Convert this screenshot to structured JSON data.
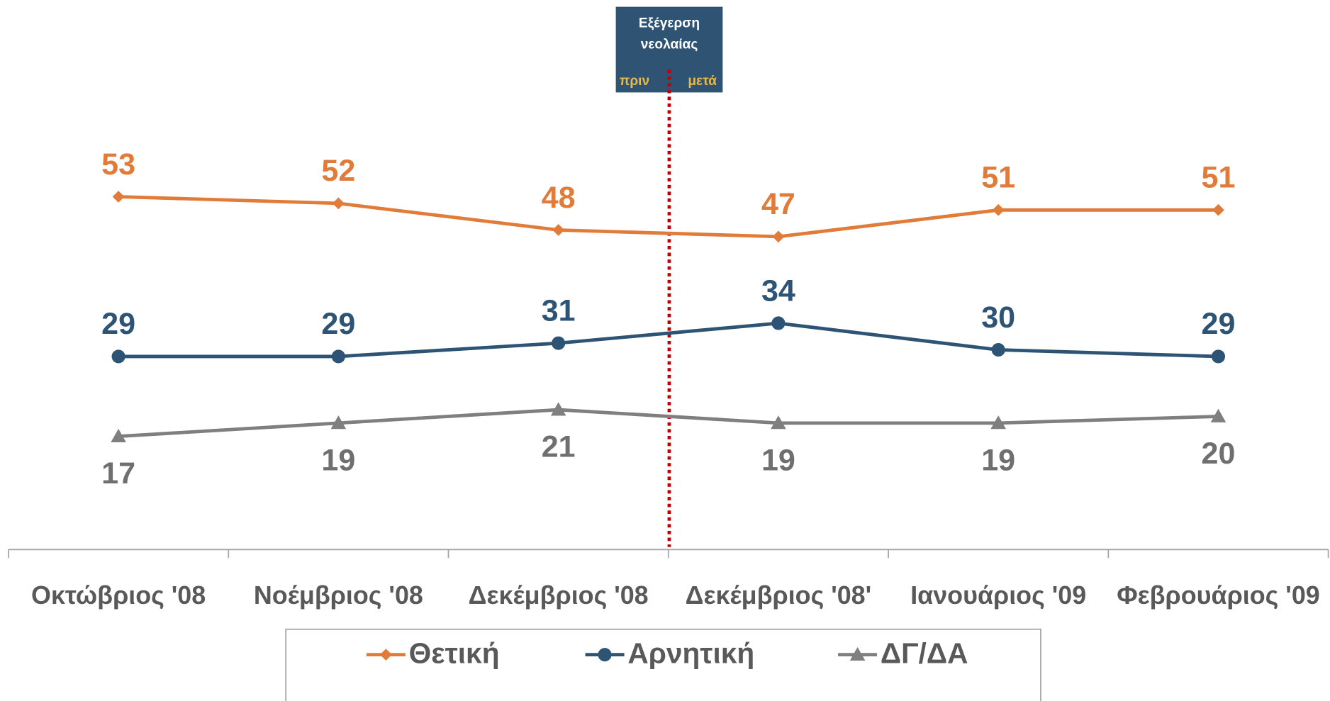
{
  "chart_data": {
    "type": "line",
    "categories": [
      "Οκτώβριος '08",
      "Νοέμβριος '08",
      "Δεκέμβριος '08",
      "Δεκέμβριος '08'",
      "Ιανουάριος '09",
      "Φεβρουάριος '09"
    ],
    "series": [
      {
        "name": "Θετική",
        "color": "#e07b39",
        "marker": "diamond",
        "label_position": "above",
        "values": [
          53,
          52,
          48,
          47,
          51,
          51
        ]
      },
      {
        "name": "Αρνητική",
        "color": "#2e5475",
        "marker": "circle",
        "label_position": "above",
        "values": [
          29,
          29,
          31,
          34,
          30,
          29
        ]
      },
      {
        "name": "ΔΓ/ΔΑ",
        "color": "#7f7f7f",
        "marker": "triangle",
        "label_position": "below",
        "values": [
          17,
          19,
          21,
          19,
          19,
          20
        ]
      }
    ],
    "ylim": [
      0,
      80
    ],
    "annotation": {
      "lines": [
        "Εξέγερση",
        "νεολαίας"
      ],
      "before": "πριν",
      "after": "μετά"
    },
    "legend": "bottom"
  }
}
